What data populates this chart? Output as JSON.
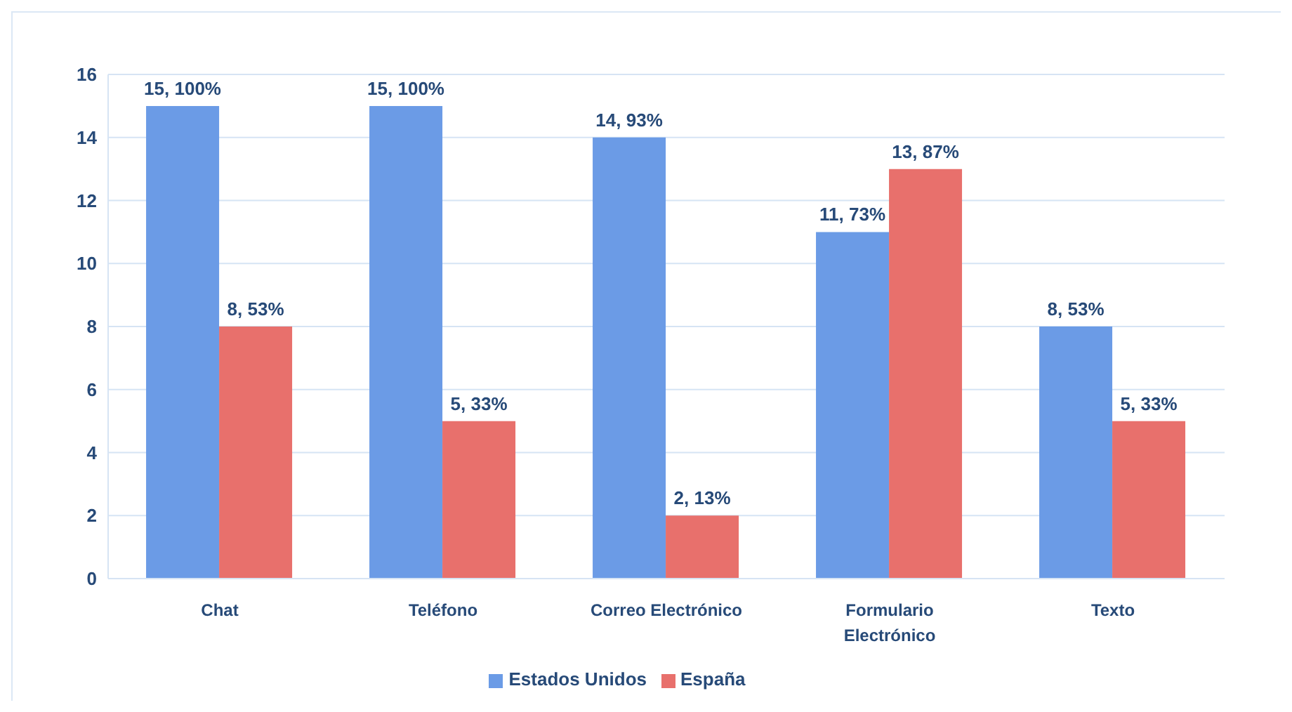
{
  "chart_data": {
    "type": "bar",
    "categories": [
      "Chat",
      "Teléfono",
      "Correo Electrónico",
      "Formulario Electrónico",
      "Texto"
    ],
    "series": [
      {
        "name": "Estados Unidos",
        "color": "#6b9be6",
        "values": [
          15,
          15,
          14,
          11,
          8
        ],
        "value_labels": [
          "15, 100%",
          "15, 100%",
          "14, 93%",
          "11, 73%",
          "8, 53%"
        ]
      },
      {
        "name": "España",
        "color": "#e8706c",
        "values": [
          8,
          5,
          2,
          13,
          5
        ],
        "value_labels": [
          "8, 53%",
          "5, 33%",
          "2, 13%",
          "13, 87%",
          "5, 33%"
        ]
      }
    ],
    "ylim": [
      0,
      16
    ],
    "yticks": [
      0,
      2,
      4,
      6,
      8,
      10,
      12,
      14,
      16
    ],
    "grid": "y",
    "legend": "bottom"
  }
}
